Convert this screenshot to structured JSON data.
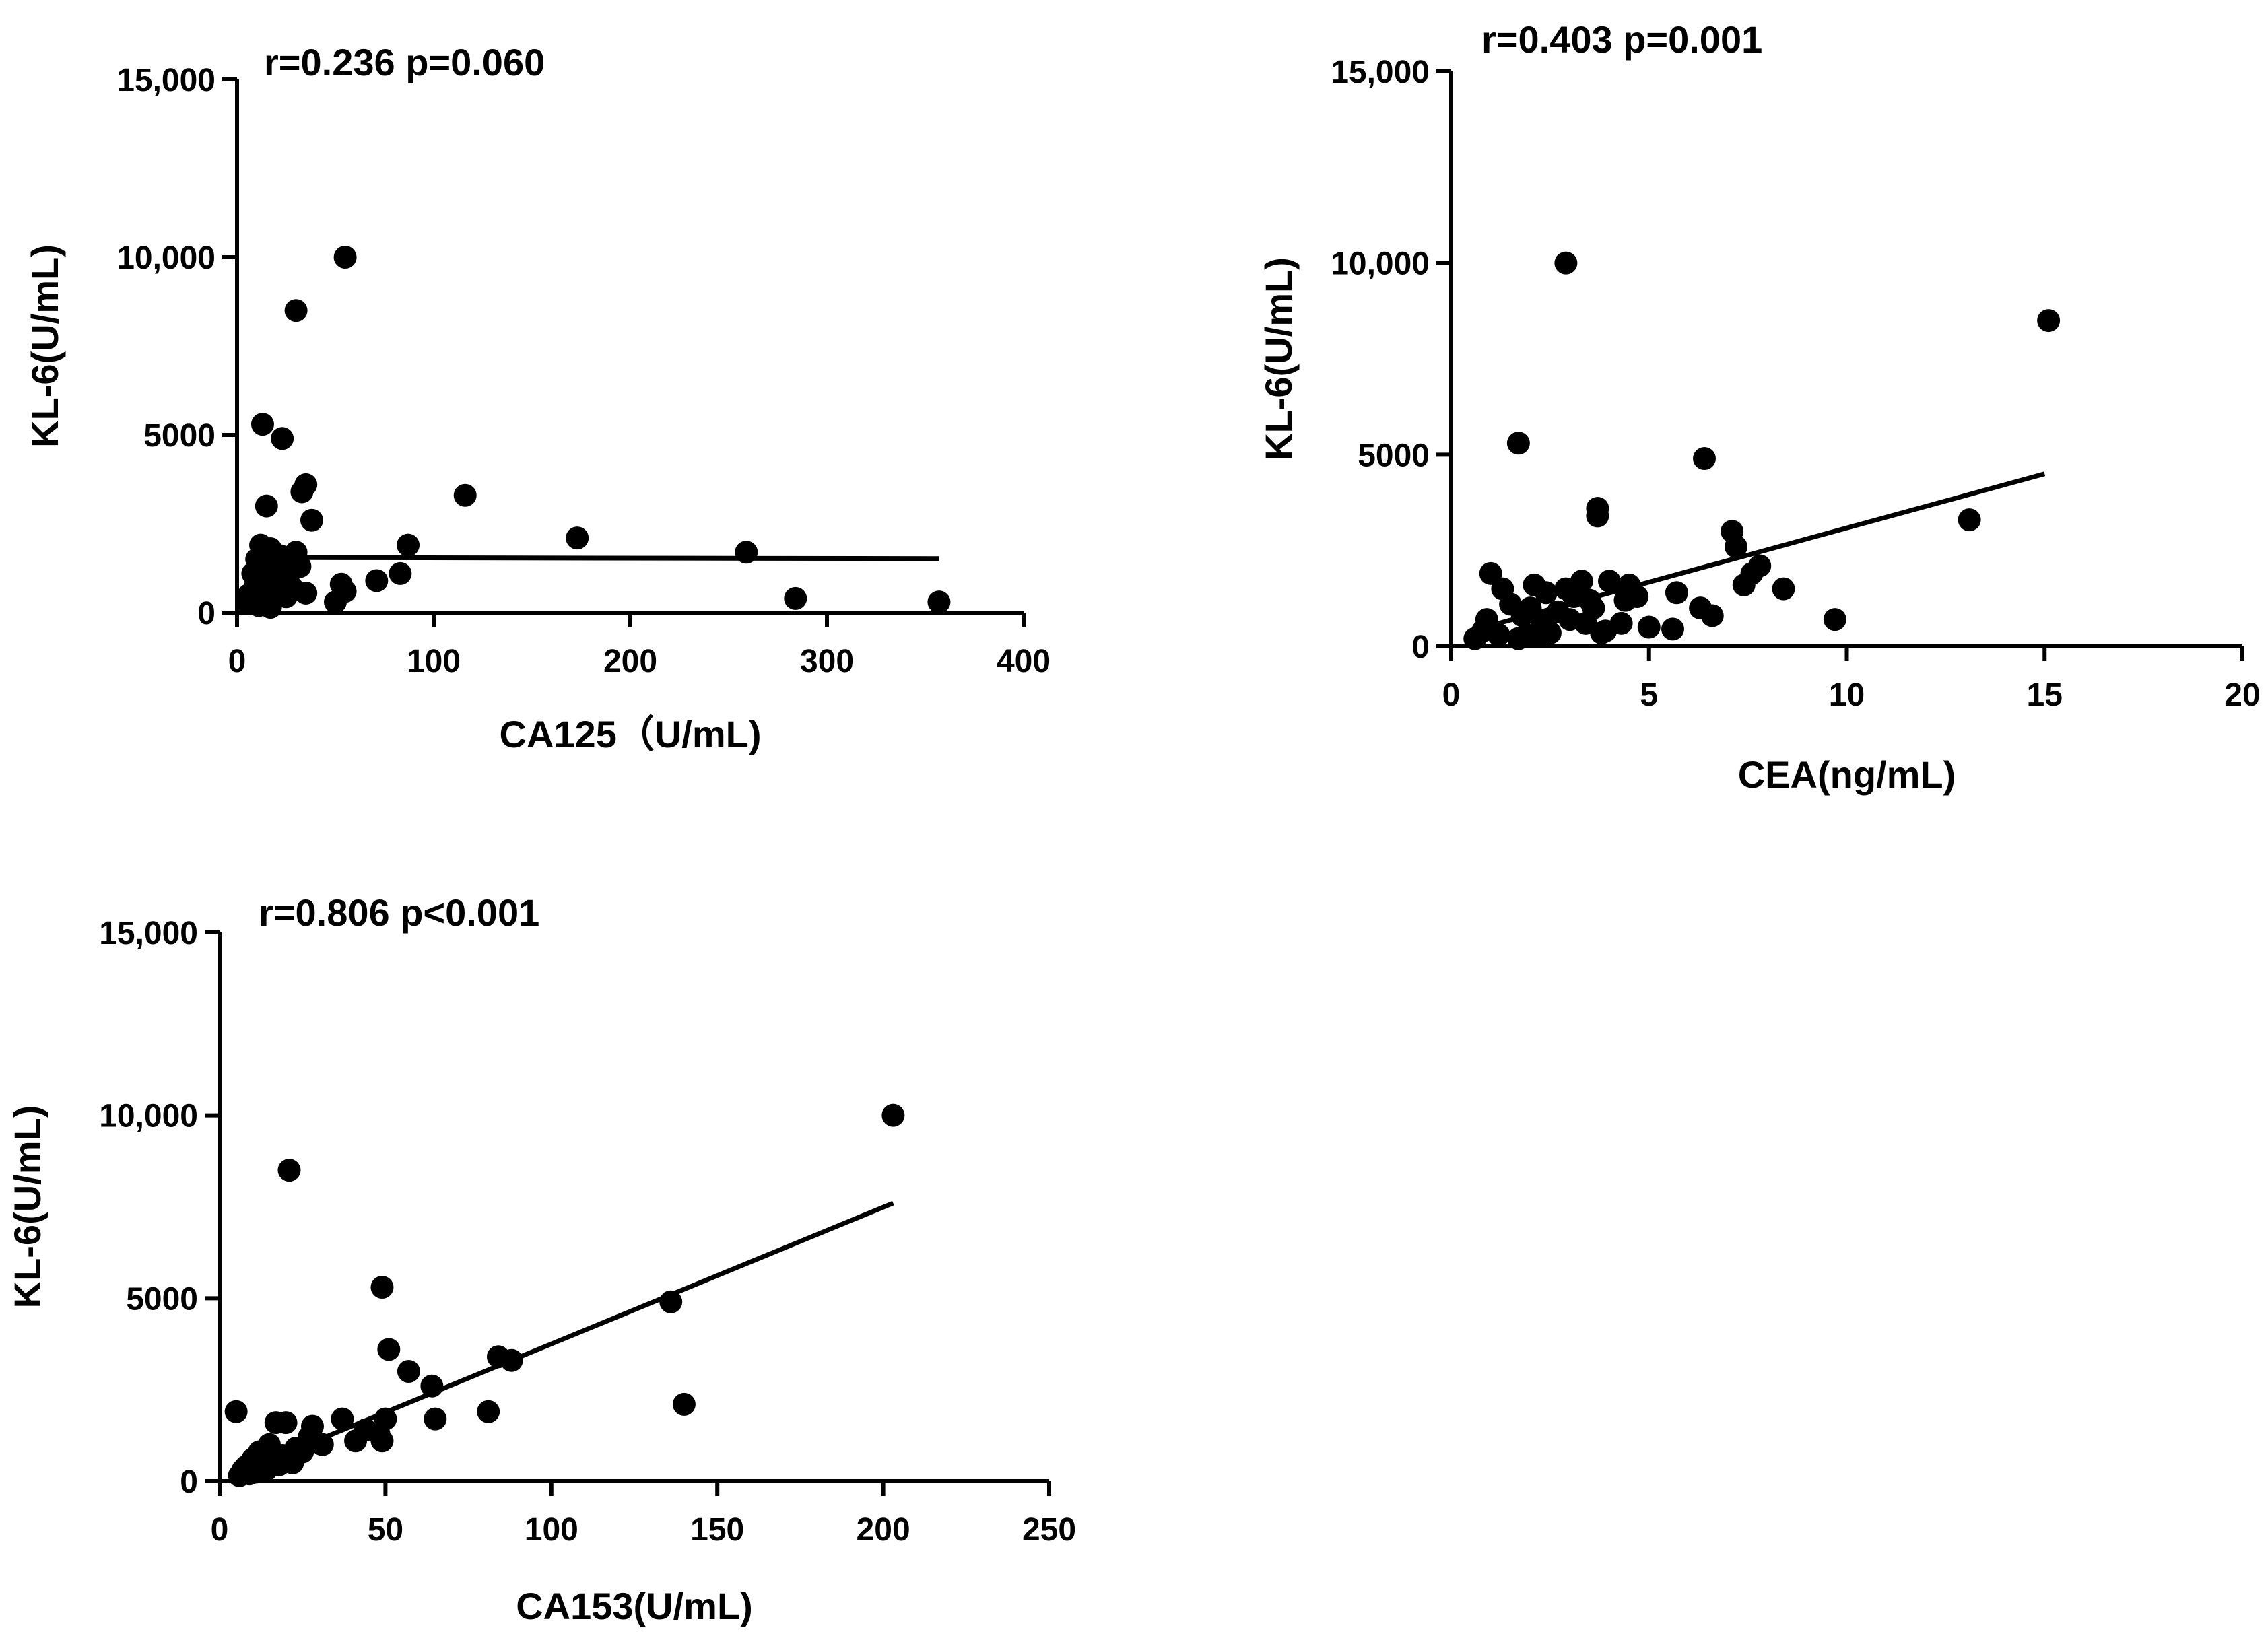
{
  "colors": {
    "ink": "#000000",
    "background": "#ffffff"
  },
  "chart_data": [
    {
      "type": "scatter",
      "name": "ca125",
      "annotation": "r=0.236  p=0.060",
      "xlabel": "CA125（U/mL)",
      "ylabel": "KL-6(U/mL)",
      "xlim": [
        0,
        400
      ],
      "ylim": [
        0,
        15000
      ],
      "xticks": [
        0,
        100,
        200,
        300,
        400
      ],
      "xtick_labels": [
        "0",
        "100",
        "200",
        "300",
        "400"
      ],
      "yticks": [
        0,
        5000,
        10000,
        15000
      ],
      "ytick_labels": [
        "0",
        "5000",
        "10,000",
        "15,000"
      ],
      "fit_line": {
        "x": [
          15,
          357
        ],
        "y": [
          1550,
          1520
        ]
      },
      "points": [
        [
          55,
          10000
        ],
        [
          30,
          8500
        ],
        [
          13,
          5300
        ],
        [
          23,
          4900
        ],
        [
          35,
          3600
        ],
        [
          33,
          3400
        ],
        [
          15,
          3000
        ],
        [
          38,
          2600
        ],
        [
          116,
          3300
        ],
        [
          173,
          2100
        ],
        [
          259,
          1700
        ],
        [
          87,
          1900
        ],
        [
          12,
          1900
        ],
        [
          17,
          1800
        ],
        [
          22,
          1600
        ],
        [
          30,
          1700
        ],
        [
          10,
          1500
        ],
        [
          19,
          1400
        ],
        [
          27,
          1300
        ],
        [
          15,
          1200
        ],
        [
          32,
          1300
        ],
        [
          8,
          1100
        ],
        [
          13,
          1000
        ],
        [
          21,
          1000
        ],
        [
          26,
          900
        ],
        [
          9,
          700
        ],
        [
          16,
          800
        ],
        [
          23,
          600
        ],
        [
          6,
          500
        ],
        [
          12,
          500
        ],
        [
          18,
          400
        ],
        [
          5,
          300
        ],
        [
          11,
          200
        ],
        [
          17,
          150
        ],
        [
          25,
          450
        ],
        [
          35,
          550
        ],
        [
          53,
          800
        ],
        [
          55,
          600
        ],
        [
          71,
          900
        ],
        [
          83,
          1100
        ],
        [
          50,
          300
        ],
        [
          284,
          400
        ],
        [
          357,
          300
        ],
        [
          20,
          1100
        ],
        [
          28,
          700
        ]
      ]
    },
    {
      "type": "scatter",
      "name": "cea",
      "annotation": "r=0.403  p=0.001",
      "xlabel": "CEA(ng/mL)",
      "ylabel": "KL-6(U/mL)",
      "xlim": [
        0,
        20
      ],
      "ylim": [
        0,
        15000
      ],
      "xticks": [
        0,
        5,
        10,
        15,
        20
      ],
      "xtick_labels": [
        "0",
        "5",
        "10",
        "15",
        "20"
      ],
      "yticks": [
        0,
        5000,
        10000,
        15000
      ],
      "ytick_labels": [
        "0",
        "5000",
        "10,000",
        "15,000"
      ],
      "fit_line": {
        "x": [
          1.2,
          15
        ],
        "y": [
          600,
          4500
        ]
      },
      "points": [
        [
          2.9,
          10000
        ],
        [
          15.1,
          8500
        ],
        [
          1.7,
          5300
        ],
        [
          6.4,
          4900
        ],
        [
          3.7,
          3600
        ],
        [
          3.7,
          3400
        ],
        [
          13.1,
          3300
        ],
        [
          7.1,
          3000
        ],
        [
          7.2,
          2600
        ],
        [
          7.8,
          2100
        ],
        [
          7.6,
          1900
        ],
        [
          1.0,
          1900
        ],
        [
          2.1,
          1600
        ],
        [
          3.3,
          1700
        ],
        [
          4.0,
          1700
        ],
        [
          4.5,
          1600
        ],
        [
          1.3,
          1500
        ],
        [
          2.4,
          1400
        ],
        [
          2.9,
          1500
        ],
        [
          3.1,
          1300
        ],
        [
          3.5,
          1200
        ],
        [
          4.4,
          1200
        ],
        [
          4.7,
          1300
        ],
        [
          5.7,
          1400
        ],
        [
          7.4,
          1600
        ],
        [
          8.4,
          1500
        ],
        [
          1.5,
          1100
        ],
        [
          2.0,
          1000
        ],
        [
          2.7,
          900
        ],
        [
          3.6,
          1000
        ],
        [
          6.3,
          1000
        ],
        [
          6.6,
          800
        ],
        [
          9.7,
          700
        ],
        [
          0.9,
          700
        ],
        [
          1.8,
          800
        ],
        [
          2.3,
          600
        ],
        [
          3.0,
          700
        ],
        [
          3.4,
          600
        ],
        [
          4.3,
          600
        ],
        [
          5.0,
          500
        ],
        [
          5.6,
          450
        ],
        [
          0.8,
          400
        ],
        [
          1.2,
          300
        ],
        [
          1.9,
          300
        ],
        [
          2.5,
          350
        ],
        [
          3.8,
          350
        ],
        [
          0.6,
          200
        ],
        [
          1.7,
          200
        ],
        [
          2.2,
          250
        ],
        [
          3.9,
          400
        ]
      ]
    },
    {
      "type": "scatter",
      "name": "ca153",
      "annotation": "r=0.806  p<0.001",
      "xlabel": "CA153(U/mL)",
      "ylabel": "KL-6(U/mL)",
      "xlim": [
        0,
        250
      ],
      "ylim": [
        0,
        15000
      ],
      "xticks": [
        0,
        50,
        100,
        150,
        200,
        250
      ],
      "xtick_labels": [
        "0",
        "50",
        "100",
        "150",
        "200",
        "250"
      ],
      "yticks": [
        0,
        5000,
        10000,
        15000
      ],
      "ytick_labels": [
        "0",
        "5000",
        "10,000",
        "15,000"
      ],
      "fit_line": {
        "x": [
          5,
          203
        ],
        "y": [
          200,
          7600
        ]
      },
      "points": [
        [
          203,
          10000
        ],
        [
          21,
          8500
        ],
        [
          49,
          5300
        ],
        [
          136,
          4900
        ],
        [
          51,
          3600
        ],
        [
          84,
          3400
        ],
        [
          88,
          3300
        ],
        [
          57,
          3000
        ],
        [
          64,
          2600
        ],
        [
          140,
          2100
        ],
        [
          81,
          1900
        ],
        [
          5,
          1900
        ],
        [
          65,
          1700
        ],
        [
          37,
          1700
        ],
        [
          50,
          1700
        ],
        [
          17,
          1600
        ],
        [
          20,
          1600
        ],
        [
          28,
          1500
        ],
        [
          44,
          1400
        ],
        [
          48,
          1300
        ],
        [
          27,
          1200
        ],
        [
          41,
          1100
        ],
        [
          49,
          1100
        ],
        [
          31,
          1000
        ],
        [
          15,
          1000
        ],
        [
          23,
          900
        ],
        [
          12,
          800
        ],
        [
          19,
          700
        ],
        [
          25,
          800
        ],
        [
          10,
          600
        ],
        [
          16,
          600
        ],
        [
          22,
          500
        ],
        [
          8,
          400
        ],
        [
          13,
          400
        ],
        [
          18,
          450
        ],
        [
          7,
          300
        ],
        [
          11,
          250
        ],
        [
          9,
          200
        ],
        [
          14,
          300
        ],
        [
          6,
          150
        ]
      ]
    }
  ]
}
